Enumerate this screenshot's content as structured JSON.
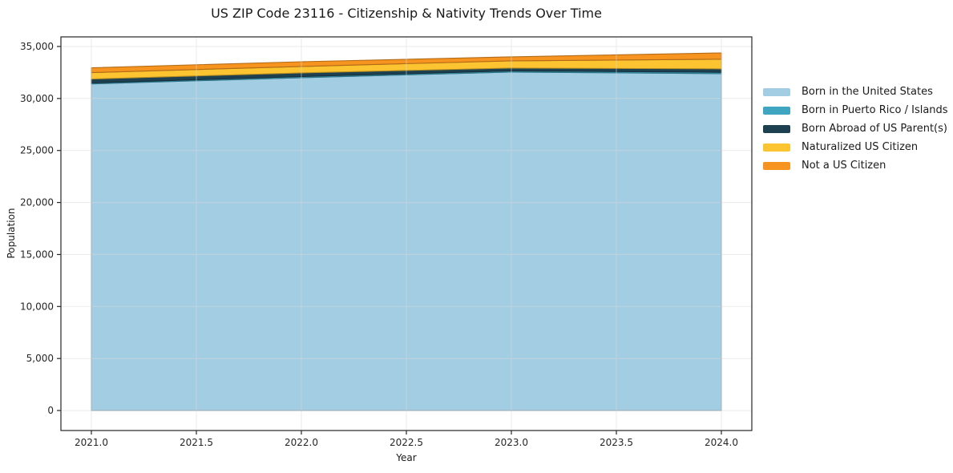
{
  "title": "US ZIP Code 23116 - Citizenship & Nativity Trends Over Time",
  "chart_data": {
    "type": "area",
    "stacked": true,
    "title": "US ZIP Code 23116 - Citizenship & Nativity Trends Over Time",
    "xlabel": "Year",
    "ylabel": "Population",
    "x": [
      2021,
      2022,
      2023,
      2024
    ],
    "series": [
      {
        "name": "Born in the United States",
        "color": "#a3cde3",
        "values": [
          31400,
          32000,
          32540,
          32385
        ]
      },
      {
        "name": "Born in Puerto Rico / Islands",
        "color": "#3fa5c0",
        "values": [
          90,
          110,
          115,
          130
        ]
      },
      {
        "name": "Born Abroad of US Parent(s)",
        "color": "#1e4152",
        "values": [
          380,
          350,
          270,
          330
        ]
      },
      {
        "name": "Naturalized US Citizen",
        "color": "#fcc430",
        "values": [
          615,
          615,
          690,
          925
        ]
      },
      {
        "name": "Not a US Citizen",
        "color": "#f7941f",
        "values": [
          460,
          460,
          385,
          615
        ]
      }
    ],
    "totals": [
      32945,
      33535,
      34000,
      34385
    ],
    "x_tick_values": [
      2021.0,
      2021.5,
      2022.0,
      2022.5,
      2023.0,
      2023.5,
      2024.0
    ],
    "x_tick_labels": [
      "2021.0",
      "2021.5",
      "2022.0",
      "2022.5",
      "2023.0",
      "2023.5",
      "2024.0"
    ],
    "y_tick_values": [
      0,
      5000,
      10000,
      15000,
      20000,
      25000,
      30000,
      35000
    ],
    "y_tick_labels": [
      "0",
      "5,000",
      "10,000",
      "15,000",
      "20,000",
      "25,000",
      "30,000",
      "35,000"
    ],
    "xlim": [
      2020.855,
      2024.145
    ],
    "ylim": [
      -1923,
      35923
    ],
    "grid": true,
    "legend_position": "right",
    "colors": {
      "spine": "#262626",
      "tick_label": "#262626",
      "gridline": "#d9d9d9",
      "background": "#ffffff"
    }
  }
}
